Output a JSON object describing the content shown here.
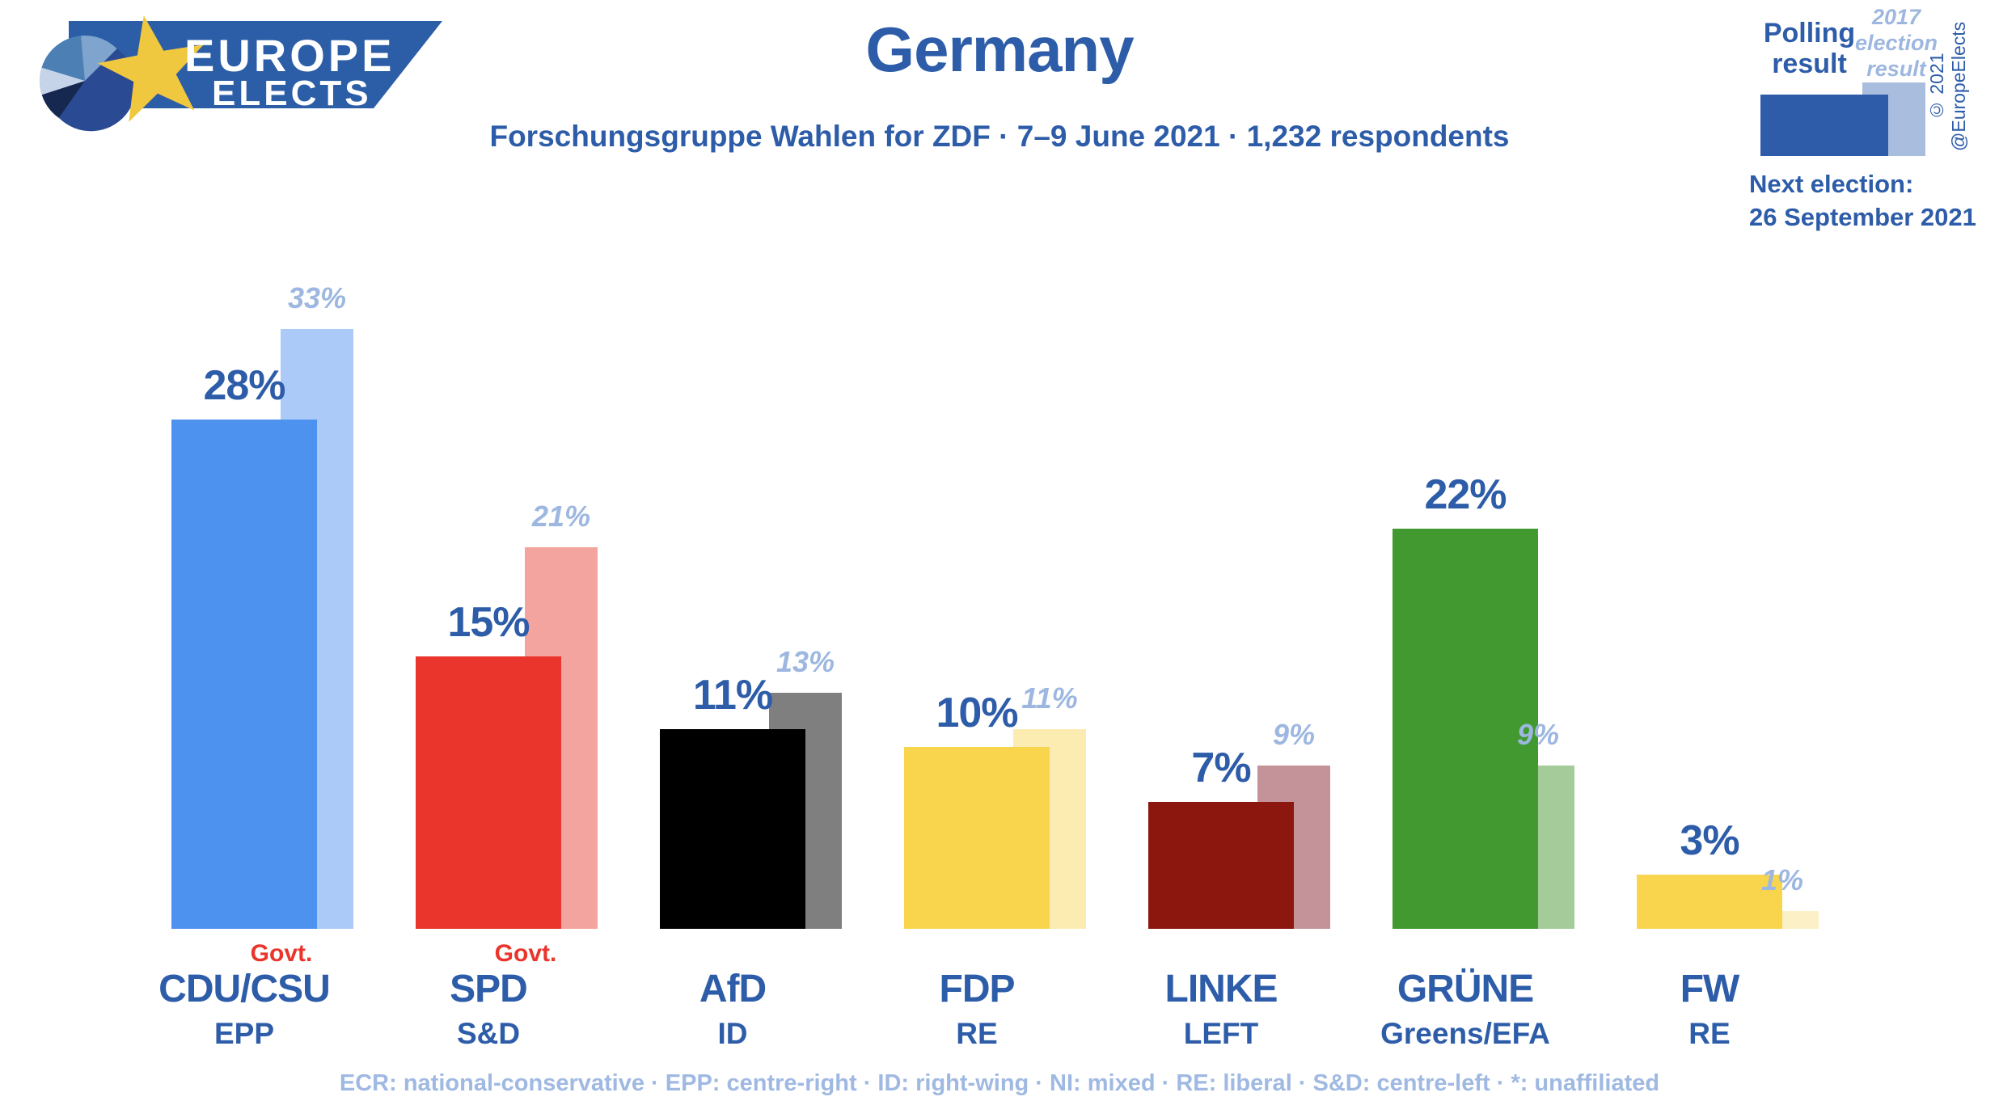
{
  "header": {
    "title": "Germany",
    "subtitle": "Forschungsgruppe Wahlen for ZDF · 7–9 June 2021 · 1,232 respondents",
    "logo_line1": "EUROPE",
    "logo_line2": "ELECTS"
  },
  "legend": {
    "polling_label": "Polling result",
    "election_label": "2017 election result",
    "copyright": "© 2021 @EuropeElects",
    "next_election_label": "Next election:",
    "next_election_date": "26 September 2021"
  },
  "govt_label": "Govt.",
  "footer": "ECR: national-conservative · EPP: centre-right · ID: right-wing · NI: mixed · RE: liberal · S&D: centre-left · *: unaffiliated",
  "colors": {
    "text_dark": "#2d5ca8",
    "text_light": "#9db7e0",
    "govt_red": "#e9352b",
    "legend_dark_bar": "#2e5ca9",
    "legend_light_bar": "#a9bedf",
    "logo_banner": "#2c5ea7",
    "logo_star": "#f0c83f"
  },
  "parties": [
    {
      "name": "CDU/CSU",
      "ep_group": "EPP",
      "govt": true,
      "poll": 28,
      "poll_label": "28%",
      "last": 33,
      "last_label": "33%",
      "color": "#4e92ef",
      "light_color": "#accaf8"
    },
    {
      "name": "SPD",
      "ep_group": "S&D",
      "govt": true,
      "poll": 15,
      "poll_label": "15%",
      "last": 21,
      "last_label": "21%",
      "color": "#e9352b",
      "light_color": "#f4a49e"
    },
    {
      "name": "AfD",
      "ep_group": "ID",
      "govt": false,
      "poll": 11,
      "poll_label": "11%",
      "last": 13,
      "last_label": "13%",
      "color": "#000000",
      "light_color": "#7f7f7f"
    },
    {
      "name": "FDP",
      "ep_group": "RE",
      "govt": false,
      "poll": 10,
      "poll_label": "10%",
      "last": 11,
      "last_label": "11%",
      "color": "#f8d54d",
      "light_color": "#fcecb2"
    },
    {
      "name": "LINKE",
      "ep_group": "LEFT",
      "govt": false,
      "poll": 7,
      "poll_label": "7%",
      "last": 9,
      "last_label": "9%",
      "color": "#8b170e",
      "light_color": "#c4939a"
    },
    {
      "name": "GRÜNE",
      "ep_group": "Greens/EFA",
      "govt": false,
      "poll": 22,
      "poll_label": "22%",
      "last": 9,
      "last_label": "9%",
      "color": "#41992f",
      "light_color": "#a6cb9a"
    },
    {
      "name": "FW",
      "ep_group": "RE",
      "govt": false,
      "poll": 3,
      "poll_label": "3%",
      "last": 1,
      "last_label": "1%",
      "color": "#f8d54d",
      "light_color": "#fcf0c6"
    }
  ],
  "chart_data": {
    "type": "bar",
    "title": "Germany",
    "subtitle": "Forschungsgruppe Wahlen for ZDF · 7–9 June 2021 · 1,232 respondents",
    "categories": [
      "CDU/CSU",
      "SPD",
      "AfD",
      "FDP",
      "LINKE",
      "GRÜNE",
      "FW"
    ],
    "category_ep_groups": [
      "EPP",
      "S&D",
      "ID",
      "RE",
      "LEFT",
      "Greens/EFA",
      "RE"
    ],
    "series": [
      {
        "name": "Polling result",
        "values": [
          28,
          15,
          11,
          10,
          7,
          22,
          3
        ]
      },
      {
        "name": "2017 election result",
        "values": [
          33,
          21,
          13,
          11,
          9,
          9,
          1
        ]
      }
    ],
    "in_government": [
      true,
      true,
      false,
      false,
      false,
      false,
      false
    ],
    "unit": "%",
    "ylabel": "",
    "xlabel": "",
    "ylim": [
      0,
      35
    ],
    "grid": false,
    "legend_position": "top-right"
  }
}
